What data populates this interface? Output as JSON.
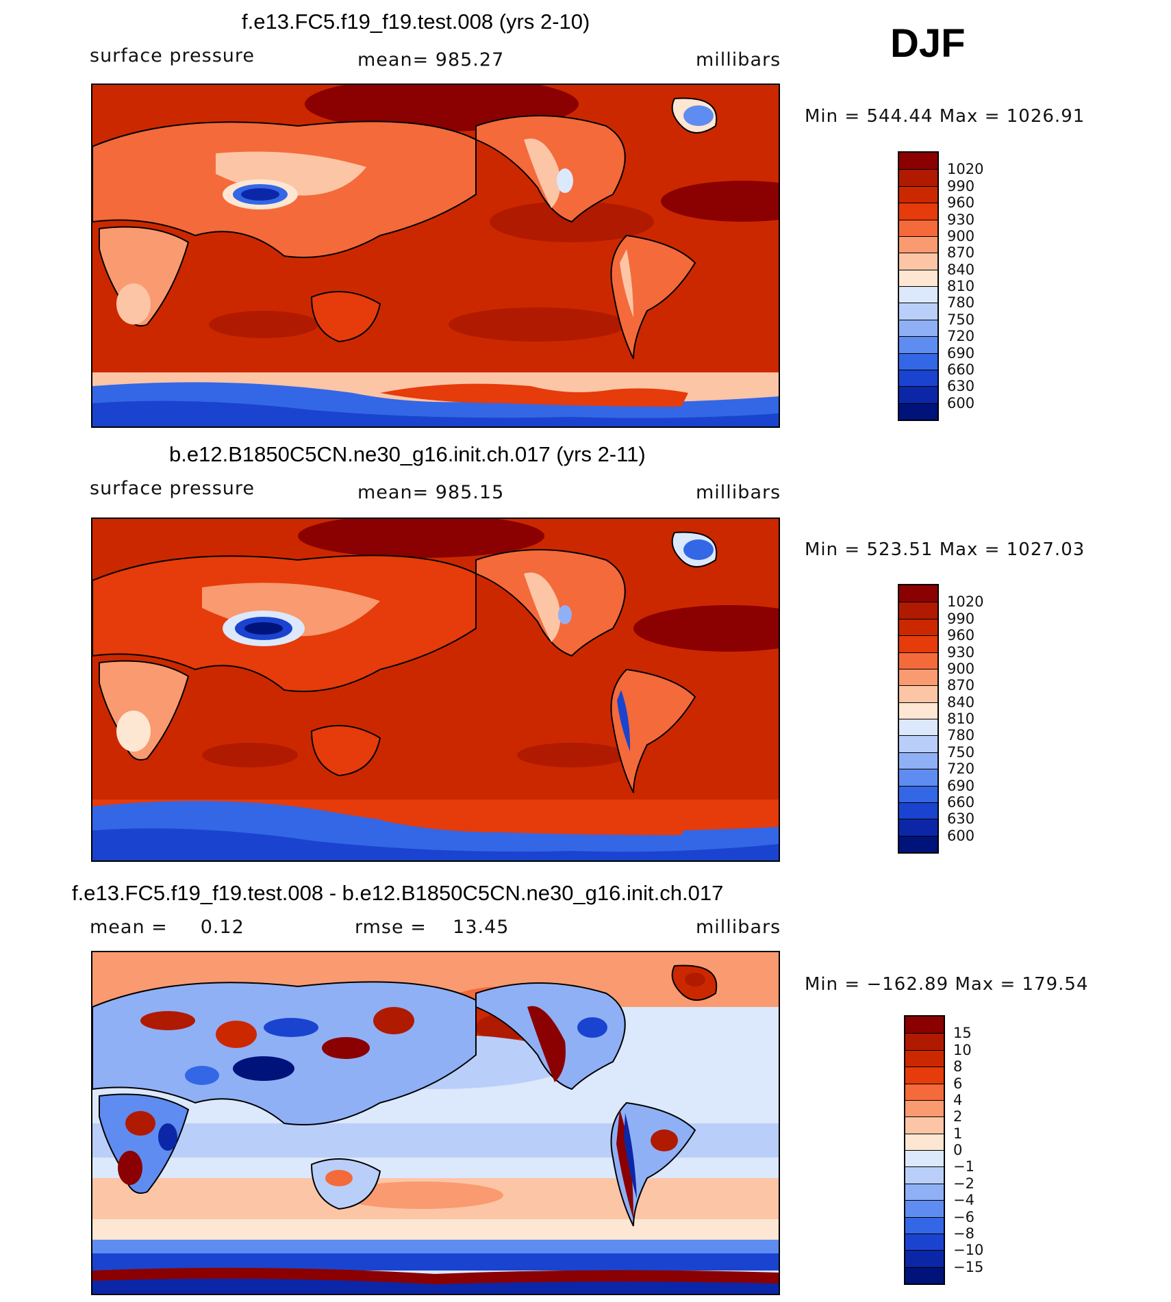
{
  "season": "DJF",
  "panels": [
    {
      "title": "f.e13.FC5.f19_f19.test.008 (yrs 2-10)",
      "left_label": "surface pressure",
      "center_label": "mean= 985.27",
      "units": "millibars",
      "minmax": "Min = 544.44 Max = 1026.91",
      "type": "field"
    },
    {
      "title": "b.e12.B1850C5CN.ne30_g16.init.ch.017 (yrs 2-11)",
      "left_label": "surface pressure",
      "center_label": "mean= 985.15",
      "units": "millibars",
      "minmax": "Min = 523.51 Max = 1027.03",
      "type": "field"
    },
    {
      "title": "f.e13.FC5.f19_f19.test.008 - b.e12.B1850C5CN.ne30_g16.init.ch.017",
      "left_label": "mean =     0.12",
      "center_label": "rmse =    13.45",
      "units": "millibars",
      "minmax": "Min = −162.89 Max = 179.54",
      "type": "diff"
    }
  ],
  "field_scale": {
    "labels": [
      "1020",
      "990",
      "960",
      "930",
      "900",
      "870",
      "840",
      "810",
      "780",
      "750",
      "720",
      "690",
      "660",
      "630",
      "600"
    ],
    "colors": [
      "#8b0000",
      "#b01a00",
      "#cc2800",
      "#e63b0a",
      "#f46a3a",
      "#f99a70",
      "#fcc5a6",
      "#fde6d2",
      "#dce8fb",
      "#b9cff9",
      "#8fb0f5",
      "#5f8cf0",
      "#3467e6",
      "#1a44cf",
      "#0b27a8",
      "#00137a"
    ]
  },
  "diff_scale": {
    "labels": [
      "15",
      "10",
      "8",
      "6",
      "4",
      "2",
      "1",
      "0",
      "−1",
      "−2",
      "−4",
      "−6",
      "−8",
      "−10",
      "−15"
    ],
    "colors": [
      "#8b0000",
      "#b01a00",
      "#cc2800",
      "#e63b0a",
      "#f46a3a",
      "#f99a70",
      "#fcc5a6",
      "#fde6d2",
      "#dce8fb",
      "#b9cff9",
      "#8fb0f5",
      "#5f8cf0",
      "#3467e6",
      "#1a44cf",
      "#0b27a8",
      "#00137a"
    ]
  }
}
